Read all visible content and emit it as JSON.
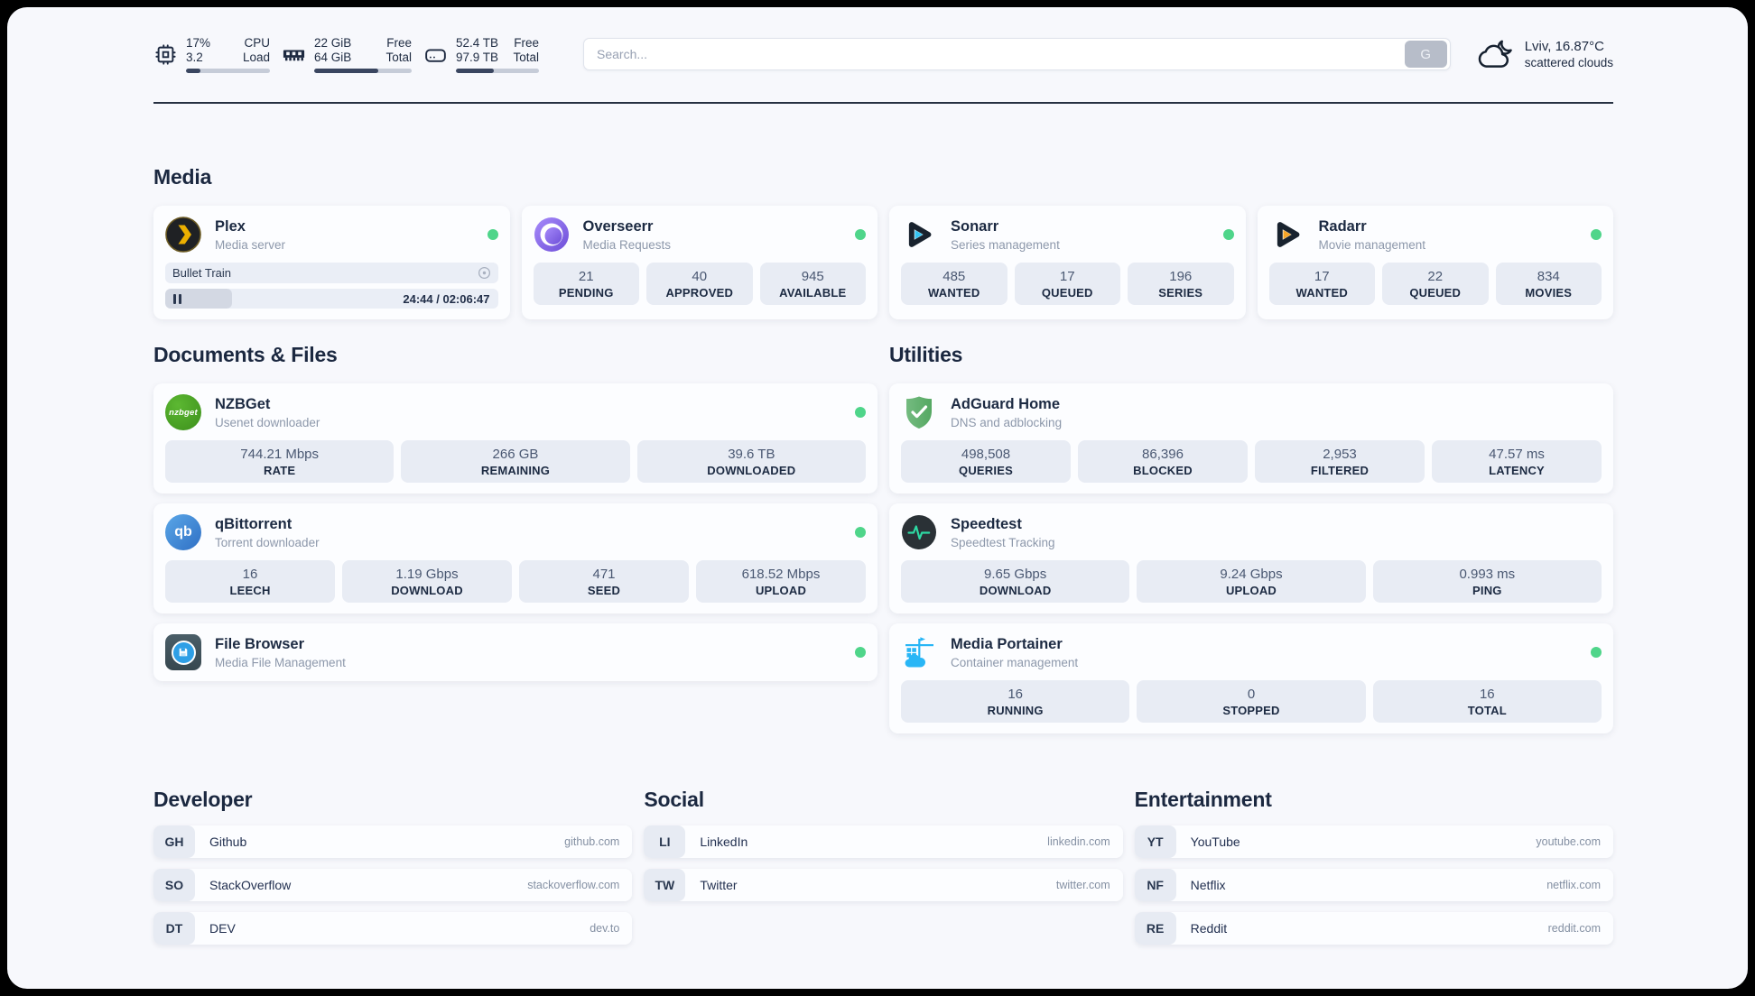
{
  "topbar": {
    "cpu": {
      "value_top": "17%",
      "value_bottom": "3.2",
      "label_top": "CPU",
      "label_bottom": "Load",
      "used_percent": 17
    },
    "memory": {
      "value_top": "22 GiB",
      "value_bottom": "64 GiB",
      "label_top": "Free",
      "label_bottom": "Total",
      "used_percent": 66
    },
    "disk": {
      "value_top": "52.4 TB",
      "value_bottom": "97.9 TB",
      "label_top": "Free",
      "label_bottom": "Total",
      "used_percent": 46
    },
    "search": {
      "placeholder": "Search...",
      "engine_button": "G"
    },
    "weather": {
      "location_temp": "Lviv, 16.87°C",
      "condition": "scattered clouds"
    }
  },
  "media": {
    "title": "Media",
    "plex": {
      "name": "Plex",
      "subtitle": "Media server",
      "now_playing": "Bullet Train",
      "time": "24:44 / 02:06:47",
      "progress_percent": 20
    },
    "apps": [
      {
        "name": "Overseerr",
        "subtitle": "Media Requests",
        "stats": [
          {
            "value": "21",
            "label": "PENDING"
          },
          {
            "value": "40",
            "label": "APPROVED"
          },
          {
            "value": "945",
            "label": "AVAILABLE"
          }
        ]
      },
      {
        "name": "Sonarr",
        "subtitle": "Series management",
        "stats": [
          {
            "value": "485",
            "label": "WANTED"
          },
          {
            "value": "17",
            "label": "QUEUED"
          },
          {
            "value": "196",
            "label": "SERIES"
          }
        ]
      },
      {
        "name": "Radarr",
        "subtitle": "Movie management",
        "stats": [
          {
            "value": "17",
            "label": "WANTED"
          },
          {
            "value": "22",
            "label": "QUEUED"
          },
          {
            "value": "834",
            "label": "MOVIES"
          }
        ]
      }
    ]
  },
  "documents": {
    "title": "Documents & Files",
    "apps": [
      {
        "name": "NZBGet",
        "subtitle": "Usenet downloader",
        "icon_text": "nzbget",
        "stats": [
          {
            "value": "744.21 Mbps",
            "label": "RATE"
          },
          {
            "value": "266 GB",
            "label": "REMAINING"
          },
          {
            "value": "39.6 TB",
            "label": "DOWNLOADED"
          }
        ]
      },
      {
        "name": "qBittorrent",
        "subtitle": "Torrent downloader",
        "icon_text": "qb",
        "stats": [
          {
            "value": "16",
            "label": "LEECH"
          },
          {
            "value": "1.19 Gbps",
            "label": "DOWNLOAD"
          },
          {
            "value": "471",
            "label": "SEED"
          },
          {
            "value": "618.52 Mbps",
            "label": "UPLOAD"
          }
        ]
      },
      {
        "name": "File Browser",
        "subtitle": "Media File Management",
        "stats": []
      }
    ]
  },
  "utilities": {
    "title": "Utilities",
    "apps": [
      {
        "name": "AdGuard Home",
        "subtitle": "DNS and adblocking",
        "stats": [
          {
            "value": "498,508",
            "label": "QUERIES"
          },
          {
            "value": "86,396",
            "label": "BLOCKED"
          },
          {
            "value": "2,953",
            "label": "FILTERED"
          },
          {
            "value": "47.57 ms",
            "label": "LATENCY"
          }
        ]
      },
      {
        "name": "Speedtest",
        "subtitle": "Speedtest Tracking",
        "stats": [
          {
            "value": "9.65 Gbps",
            "label": "DOWNLOAD"
          },
          {
            "value": "9.24 Gbps",
            "label": "UPLOAD"
          },
          {
            "value": "0.993 ms",
            "label": "PING"
          }
        ]
      },
      {
        "name": "Media Portainer",
        "subtitle": "Container management",
        "stats": [
          {
            "value": "16",
            "label": "RUNNING"
          },
          {
            "value": "0",
            "label": "STOPPED"
          },
          {
            "value": "16",
            "label": "TOTAL"
          }
        ]
      }
    ]
  },
  "bookmarks": [
    {
      "title": "Developer",
      "links": [
        {
          "abbr": "GH",
          "name": "Github",
          "domain": "github.com"
        },
        {
          "abbr": "SO",
          "name": "StackOverflow",
          "domain": "stackoverflow.com"
        },
        {
          "abbr": "DT",
          "name": "DEV",
          "domain": "dev.to"
        }
      ]
    },
    {
      "title": "Social",
      "links": [
        {
          "abbr": "LI",
          "name": "LinkedIn",
          "domain": "linkedin.com"
        },
        {
          "abbr": "TW",
          "name": "Twitter",
          "domain": "twitter.com"
        }
      ]
    },
    {
      "title": "Entertainment",
      "links": [
        {
          "abbr": "YT",
          "name": "YouTube",
          "domain": "youtube.com"
        },
        {
          "abbr": "NF",
          "name": "Netflix",
          "domain": "netflix.com"
        },
        {
          "abbr": "RE",
          "name": "Reddit",
          "domain": "reddit.com"
        }
      ]
    }
  ]
}
